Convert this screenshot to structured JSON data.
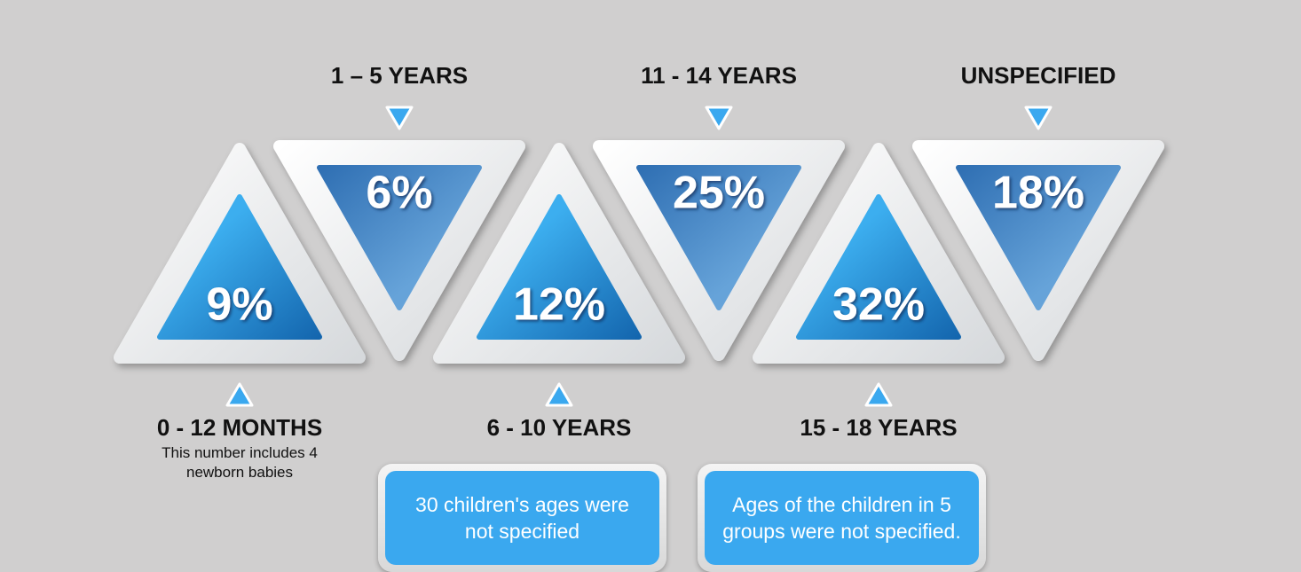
{
  "segments": [
    {
      "label": "0 - 12 MONTHS",
      "value": "9%",
      "note": "This number includes 4 newborn babies"
    },
    {
      "label": "1 – 5 YEARS",
      "value": "6%"
    },
    {
      "label": "6 - 10 YEARS",
      "value": "12%",
      "box": "30 children's ages were not specified"
    },
    {
      "label": "11 - 14 YEARS",
      "value": "25%"
    },
    {
      "label": "15 - 18 YEARS",
      "value": "32%",
      "box": "Ages of the children in 5 groups were not specified."
    },
    {
      "label": "UNSPECIFIED",
      "value": "18%"
    }
  ]
}
